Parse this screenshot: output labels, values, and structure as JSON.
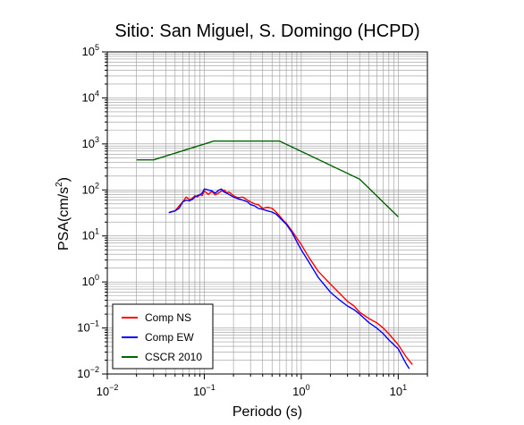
{
  "chart_data": {
    "type": "line",
    "title": "Sitio: San Miguel, S. Domingo (HCPD)",
    "xlabel": "Periodo (s)",
    "ylabel_main": "PSA(cm/s",
    "ylabel_sup": "2",
    "ylabel_end": ")",
    "x_scale": "log",
    "y_scale": "log",
    "xlim": [
      0.01,
      20
    ],
    "ylim": [
      0.01,
      100000
    ],
    "grid": true,
    "legend_position": "bottom-left",
    "x_ticks": [
      {
        "value": 0.01,
        "base": "10",
        "exp": "−2"
      },
      {
        "value": 0.1,
        "base": "10",
        "exp": "−1"
      },
      {
        "value": 1,
        "base": "10",
        "exp": "0"
      },
      {
        "value": 10,
        "base": "10",
        "exp": "1"
      }
    ],
    "y_ticks": [
      {
        "value": 0.01,
        "base": "10",
        "exp": "−2"
      },
      {
        "value": 0.1,
        "base": "10",
        "exp": "−1"
      },
      {
        "value": 1,
        "base": "10",
        "exp": "0"
      },
      {
        "value": 10,
        "base": "10",
        "exp": "1"
      },
      {
        "value": 100,
        "base": "10",
        "exp": "2"
      },
      {
        "value": 1000,
        "base": "10",
        "exp": "3"
      },
      {
        "value": 10000,
        "base": "10",
        "exp": "4"
      },
      {
        "value": 100000,
        "base": "10",
        "exp": "5"
      }
    ],
    "series": [
      {
        "name": "Comp NS",
        "color": "#ff0000",
        "x": [
          0.044,
          0.05,
          0.055,
          0.06,
          0.065,
          0.07,
          0.075,
          0.08,
          0.085,
          0.09,
          0.095,
          0.1,
          0.11,
          0.12,
          0.13,
          0.14,
          0.15,
          0.16,
          0.17,
          0.18,
          0.2,
          0.22,
          0.25,
          0.28,
          0.3,
          0.33,
          0.36,
          0.4,
          0.45,
          0.5,
          0.55,
          0.6,
          0.65,
          0.7,
          0.8,
          0.9,
          1.0,
          1.2,
          1.5,
          2.0,
          2.5,
          3.0,
          3.5,
          4.0,
          5.0,
          6.0,
          7.0,
          8.0,
          10.0,
          12.0,
          14.0
        ],
        "y": [
          33,
          35,
          45,
          55,
          70,
          62,
          65,
          75,
          70,
          80,
          75,
          95,
          80,
          92,
          78,
          85,
          95,
          100,
          88,
          90,
          75,
          68,
          70,
          60,
          55,
          50,
          48,
          40,
          42,
          40,
          33,
          27,
          22,
          19,
          13,
          9,
          6.5,
          3.4,
          1.7,
          0.9,
          0.56,
          0.38,
          0.3,
          0.22,
          0.16,
          0.13,
          0.1,
          0.075,
          0.043,
          0.024,
          0.016
        ]
      },
      {
        "name": "Comp EW",
        "color": "#0000ff",
        "x": [
          0.043,
          0.05,
          0.055,
          0.06,
          0.065,
          0.07,
          0.075,
          0.08,
          0.085,
          0.09,
          0.095,
          0.1,
          0.11,
          0.12,
          0.13,
          0.14,
          0.15,
          0.16,
          0.17,
          0.18,
          0.2,
          0.22,
          0.25,
          0.28,
          0.3,
          0.33,
          0.36,
          0.4,
          0.45,
          0.5,
          0.55,
          0.6,
          0.65,
          0.7,
          0.8,
          0.9,
          1.0,
          1.2,
          1.5,
          2.0,
          2.5,
          3.0,
          3.5,
          4.0,
          5.0,
          6.0,
          7.0,
          8.0,
          10.0,
          12.0,
          13.0
        ],
        "y": [
          32,
          35,
          40,
          55,
          60,
          58,
          62,
          70,
          75,
          78,
          85,
          105,
          100,
          95,
          85,
          98,
          105,
          90,
          85,
          80,
          70,
          65,
          60,
          55,
          48,
          45,
          40,
          38,
          35,
          33,
          30,
          25,
          21,
          18,
          12,
          7.5,
          5,
          2.7,
          1.25,
          0.6,
          0.4,
          0.3,
          0.25,
          0.2,
          0.13,
          0.1,
          0.075,
          0.055,
          0.035,
          0.017,
          0.013
        ]
      },
      {
        "name": "CSCR 2010",
        "color": "#006400",
        "x": [
          0.02,
          0.03,
          0.125,
          0.6,
          4.0,
          10.0
        ],
        "y": [
          450,
          450,
          1150,
          1150,
          172,
          26
        ]
      }
    ]
  }
}
